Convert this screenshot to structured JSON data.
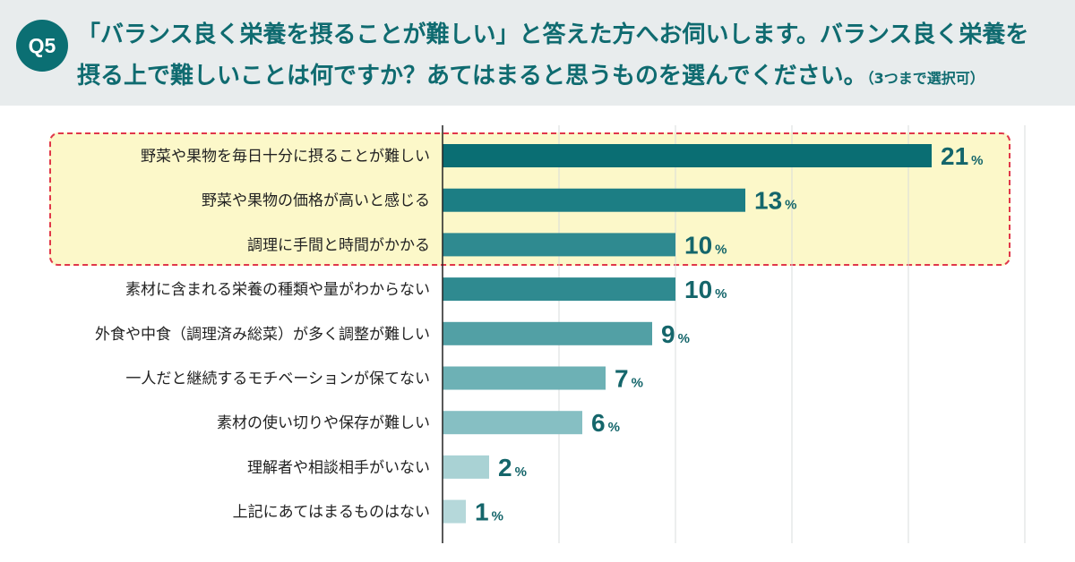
{
  "question": {
    "badge": "Q5",
    "line1": "「バランス良く栄養を摂ることが難しい」と答えた方へお伺いします。バランス良く栄養を",
    "line2": "摂る上で難しいことは何ですか？あてはまると思うものを選んでください。",
    "note": "（3つまで選択可）"
  },
  "colors": {
    "header_bg": "#e8eced",
    "accent": "#0b6f73",
    "highlight_bg": "#fcf8c9",
    "highlight_border": "#e0374a"
  },
  "chart_data": {
    "type": "bar",
    "orientation": "horizontal",
    "categories": [
      "野菜や果物を毎日十分に摂ることが難しい",
      "野菜や果物の価格が高いと感じる",
      "調理に手間と時間がかかる",
      "素材に含まれる栄養の種類や量がわからない",
      "外食や中食（調理済み総菜）が多く調整が難しい",
      "一人だと継続するモチベーションが保てない",
      "素材の使い切りや保存が難しい",
      "理解者や相談相手がいない",
      "上記にあてはまるものはない"
    ],
    "values": [
      21,
      13,
      10,
      10,
      9,
      7,
      6,
      2,
      1
    ],
    "value_labels": [
      "21",
      "13",
      "10",
      "10",
      "9",
      "7",
      "6",
      "2",
      "1"
    ],
    "unit": "%",
    "bar_colors": [
      "#0a6e73",
      "#1c7e84",
      "#2f8a90",
      "#2f8a90",
      "#52a0a5",
      "#6db1b5",
      "#86bfc3",
      "#a9d2d4",
      "#b5d8da"
    ],
    "xlim": [
      0,
      25
    ],
    "grid": true,
    "highlighted_top": 3
  }
}
